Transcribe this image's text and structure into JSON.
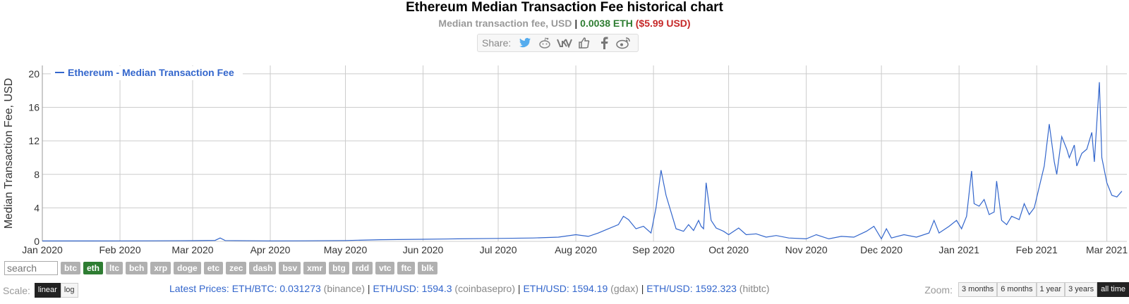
{
  "header": {
    "title": "Ethereum Median Transaction Fee historical chart",
    "subtitle_prefix": "Median transaction fee, USD",
    "subtitle_sep": " | ",
    "subtitle_eth": "0.0038 ETH",
    "subtitle_usd": "($5.99 USD)"
  },
  "share": {
    "label": "Share:",
    "icons": [
      "twitter-icon",
      "reddit-icon",
      "vk-icon",
      "like-icon",
      "facebook-icon",
      "weibo-icon"
    ]
  },
  "colors": {
    "line": "#3366cc",
    "grid": "#cccccc",
    "active_coin": "#2e7d32",
    "eth_value": "#2e7d32",
    "usd_value": "#c62828"
  },
  "chart_data": {
    "type": "line",
    "ylabel": "Median Transaction Fee, USD",
    "legend": "Ethereum - Median Transaction Fee",
    "legend_position": "top-left",
    "grid": true,
    "ylim": [
      0,
      21
    ],
    "yticks": [
      0,
      4,
      8,
      12,
      16,
      20
    ],
    "xlim": [
      "2020-01-01",
      "2021-03-09"
    ],
    "xticks": [
      {
        "label": "Jan 2020",
        "date": "2020-01-01"
      },
      {
        "label": "Feb 2020",
        "date": "2020-02-01"
      },
      {
        "label": "Mar 2020",
        "date": "2020-03-01"
      },
      {
        "label": "Apr 2020",
        "date": "2020-04-01"
      },
      {
        "label": "May 2020",
        "date": "2020-05-01"
      },
      {
        "label": "Jun 2020",
        "date": "2020-06-01"
      },
      {
        "label": "Jul 2020",
        "date": "2020-07-01"
      },
      {
        "label": "Aug 2020",
        "date": "2020-08-01"
      },
      {
        "label": "Sep 2020",
        "date": "2020-09-01"
      },
      {
        "label": "Oct 2020",
        "date": "2020-10-01"
      },
      {
        "label": "Nov 2020",
        "date": "2020-11-01"
      },
      {
        "label": "Dec 2020",
        "date": "2020-12-01"
      },
      {
        "label": "Jan 2021",
        "date": "2021-01-01"
      },
      {
        "label": "Feb 2021",
        "date": "2021-02-01"
      },
      {
        "label": "Mar 2021",
        "date": "2021-03-01"
      }
    ],
    "series": [
      {
        "name": "Ethereum - Median Transaction Fee",
        "points": [
          [
            "2020-01-01",
            0.05
          ],
          [
            "2020-01-15",
            0.05
          ],
          [
            "2020-02-01",
            0.06
          ],
          [
            "2020-02-15",
            0.07
          ],
          [
            "2020-03-01",
            0.08
          ],
          [
            "2020-03-10",
            0.12
          ],
          [
            "2020-03-12",
            0.4
          ],
          [
            "2020-03-14",
            0.1
          ],
          [
            "2020-04-01",
            0.06
          ],
          [
            "2020-04-15",
            0.07
          ],
          [
            "2020-05-01",
            0.1
          ],
          [
            "2020-05-15",
            0.2
          ],
          [
            "2020-06-01",
            0.25
          ],
          [
            "2020-06-15",
            0.3
          ],
          [
            "2020-07-01",
            0.35
          ],
          [
            "2020-07-15",
            0.4
          ],
          [
            "2020-07-25",
            0.5
          ],
          [
            "2020-08-01",
            0.8
          ],
          [
            "2020-08-06",
            0.6
          ],
          [
            "2020-08-10",
            1.0
          ],
          [
            "2020-08-14",
            1.5
          ],
          [
            "2020-08-18",
            2.0
          ],
          [
            "2020-08-20",
            3.0
          ],
          [
            "2020-08-22",
            2.6
          ],
          [
            "2020-08-25",
            1.5
          ],
          [
            "2020-08-28",
            1.8
          ],
          [
            "2020-08-31",
            1.0
          ],
          [
            "2020-09-02",
            4.0
          ],
          [
            "2020-09-04",
            8.5
          ],
          [
            "2020-09-06",
            5.5
          ],
          [
            "2020-09-08",
            3.5
          ],
          [
            "2020-09-10",
            1.5
          ],
          [
            "2020-09-13",
            1.2
          ],
          [
            "2020-09-15",
            2.0
          ],
          [
            "2020-09-17",
            1.3
          ],
          [
            "2020-09-19",
            2.5
          ],
          [
            "2020-09-20",
            1.8
          ],
          [
            "2020-09-21",
            1.5
          ],
          [
            "2020-09-22",
            7.0
          ],
          [
            "2020-09-24",
            2.5
          ],
          [
            "2020-09-26",
            1.6
          ],
          [
            "2020-09-29",
            1.2
          ],
          [
            "2020-10-01",
            0.8
          ],
          [
            "2020-10-05",
            1.6
          ],
          [
            "2020-10-08",
            0.8
          ],
          [
            "2020-10-12",
            0.9
          ],
          [
            "2020-10-16",
            0.5
          ],
          [
            "2020-10-20",
            0.7
          ],
          [
            "2020-10-25",
            0.4
          ],
          [
            "2020-11-01",
            0.3
          ],
          [
            "2020-11-05",
            0.8
          ],
          [
            "2020-11-10",
            0.3
          ],
          [
            "2020-11-15",
            0.6
          ],
          [
            "2020-11-20",
            0.5
          ],
          [
            "2020-11-25",
            1.2
          ],
          [
            "2020-11-28",
            1.8
          ],
          [
            "2020-12-01",
            0.3
          ],
          [
            "2020-12-03",
            1.5
          ],
          [
            "2020-12-05",
            0.4
          ],
          [
            "2020-12-10",
            0.8
          ],
          [
            "2020-12-15",
            0.5
          ],
          [
            "2020-12-20",
            1.0
          ],
          [
            "2020-12-22",
            2.5
          ],
          [
            "2020-12-24",
            1.0
          ],
          [
            "2020-12-28",
            1.8
          ],
          [
            "2020-12-31",
            2.5
          ],
          [
            "2021-01-02",
            1.5
          ],
          [
            "2021-01-04",
            3.0
          ],
          [
            "2021-01-06",
            8.4
          ],
          [
            "2021-01-07",
            4.5
          ],
          [
            "2021-01-09",
            4.2
          ],
          [
            "2021-01-11",
            5.0
          ],
          [
            "2021-01-13",
            3.2
          ],
          [
            "2021-01-15",
            3.5
          ],
          [
            "2021-01-16",
            7.2
          ],
          [
            "2021-01-18",
            2.5
          ],
          [
            "2021-01-20",
            2.0
          ],
          [
            "2021-01-22",
            3.0
          ],
          [
            "2021-01-25",
            2.6
          ],
          [
            "2021-01-27",
            4.5
          ],
          [
            "2021-01-29",
            3.2
          ],
          [
            "2021-01-31",
            4.0
          ],
          [
            "2021-02-02",
            6.5
          ],
          [
            "2021-02-04",
            9.0
          ],
          [
            "2021-02-06",
            14.0
          ],
          [
            "2021-02-08",
            9.5
          ],
          [
            "2021-02-09",
            8.0
          ],
          [
            "2021-02-11",
            12.5
          ],
          [
            "2021-02-13",
            11.0
          ],
          [
            "2021-02-14",
            10.0
          ],
          [
            "2021-02-16",
            11.5
          ],
          [
            "2021-02-17",
            9.0
          ],
          [
            "2021-02-19",
            10.5
          ],
          [
            "2021-02-21",
            11.0
          ],
          [
            "2021-02-23",
            13.0
          ],
          [
            "2021-02-24",
            9.5
          ],
          [
            "2021-02-26",
            19.0
          ],
          [
            "2021-02-27",
            10.0
          ],
          [
            "2021-03-01",
            7.0
          ],
          [
            "2021-03-03",
            5.5
          ],
          [
            "2021-03-05",
            5.3
          ],
          [
            "2021-03-07",
            5.99
          ]
        ]
      }
    ]
  },
  "controls": {
    "search_placeholder": "search",
    "coins": [
      "btc",
      "eth",
      "ltc",
      "bch",
      "xrp",
      "doge",
      "etc",
      "zec",
      "dash",
      "bsv",
      "xmr",
      "btg",
      "rdd",
      "vtc",
      "ftc",
      "blk"
    ],
    "active_coin": "eth",
    "scale_label": "Scale:",
    "scale_linear": "linear",
    "scale_log": "log"
  },
  "latest": {
    "prefix": "Latest Prices: ",
    "items": [
      {
        "pair": "ETH/BTC: 0.031273",
        "src": "(binance)"
      },
      {
        "pair": "ETH/USD: 1594.3",
        "src": "(coinbasepro)"
      },
      {
        "pair": "ETH/USD: 1594.19",
        "src": "(gdax)"
      },
      {
        "pair": "ETH/USD: 1592.323",
        "src": "(hitbtc)"
      }
    ]
  },
  "zoom": {
    "label": "Zoom:",
    "options": [
      "3 months",
      "6 months",
      "1 year",
      "3 years",
      "all time"
    ],
    "active": "all time"
  }
}
